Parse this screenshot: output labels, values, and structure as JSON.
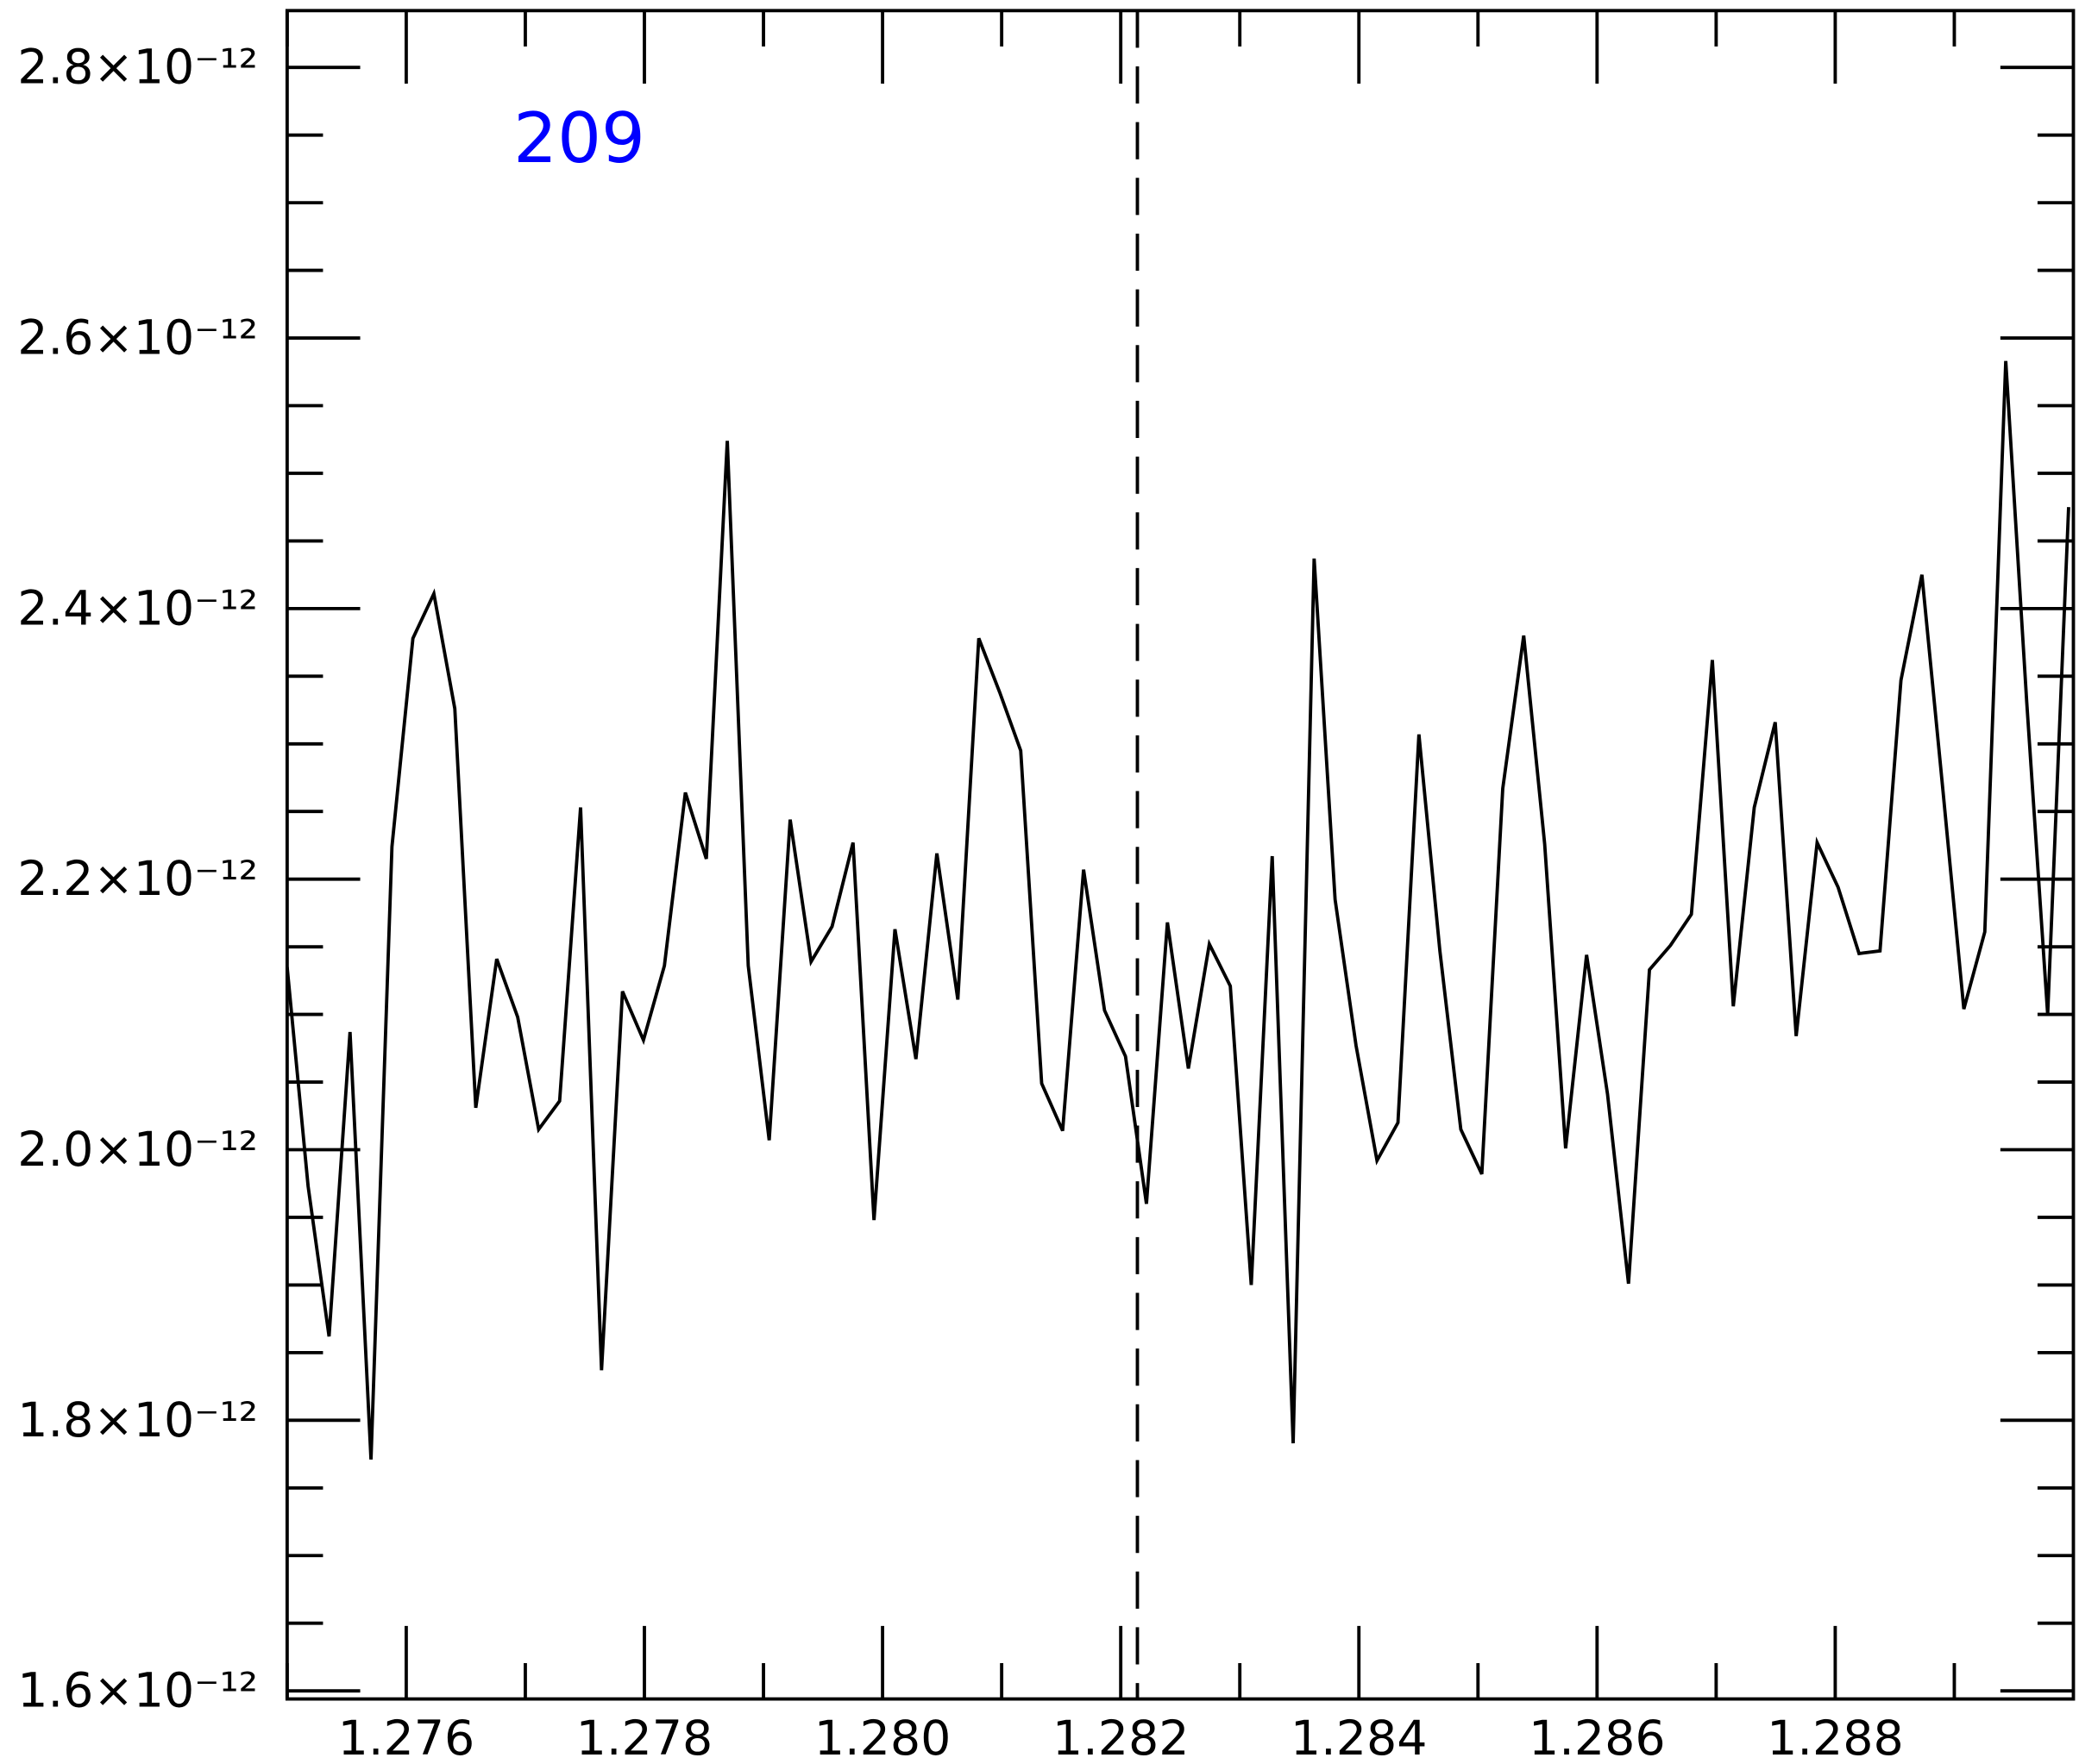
{
  "chart_data": {
    "type": "line",
    "color": "#000000",
    "annotation": {
      "text": "209",
      "x": 1.2769,
      "y": 2.73e-12,
      "color": "#0000ff"
    },
    "vline": {
      "x": 1.28214,
      "style": "dashed"
    },
    "xlim": [
      1.275,
      1.29
    ],
    "ylim": [
      1.594e-12,
      2.842e-12
    ],
    "xticks": [
      1.276,
      1.278,
      {
        "value": 1.28,
        "label": "1.280"
      },
      1.282,
      1.284,
      1.286,
      1.288
    ],
    "yticks": [
      {
        "value": 1.6e-12,
        "label": "1.6×10⁻¹²"
      },
      {
        "value": 1.8e-12,
        "label": "1.8×10⁻¹²"
      },
      {
        "value": 2e-12,
        "label": "2.0×10⁻¹²"
      },
      {
        "value": 2.2e-12,
        "label": "2.2×10⁻¹²"
      },
      {
        "value": 2.4e-12,
        "label": "2.4×10⁻¹²"
      },
      {
        "value": 2.6e-12,
        "label": "2.6×10⁻¹²"
      },
      {
        "value": 2.8e-12,
        "label": "2.8×10⁻¹²"
      }
    ],
    "x": [
      1.275,
      1.275176,
      1.275352,
      1.275528,
      1.275704,
      1.27588,
      1.276056,
      1.276232,
      1.276408,
      1.276584,
      1.27676,
      1.276936,
      1.277112,
      1.277288,
      1.277464,
      1.27764,
      1.277816,
      1.277992,
      1.278168,
      1.278344,
      1.27852,
      1.278696,
      1.278872,
      1.279048,
      1.279224,
      1.2794,
      1.279576,
      1.279752,
      1.279928,
      1.280104,
      1.28028,
      1.280456,
      1.280632,
      1.280808,
      1.280984,
      1.28116,
      1.281336,
      1.281512,
      1.281688,
      1.281864,
      1.28204,
      1.282216,
      1.282392,
      1.282568,
      1.282744,
      1.28292,
      1.283096,
      1.283272,
      1.283448,
      1.283624,
      1.2838,
      1.283976,
      1.284152,
      1.284328,
      1.284504,
      1.28468,
      1.284856,
      1.285032,
      1.285208,
      1.285384,
      1.28556,
      1.285736,
      1.285912,
      1.286088,
      1.286264,
      1.28644,
      1.286616,
      1.286792,
      1.286968,
      1.287144,
      1.28732,
      1.287496,
      1.287672,
      1.287848,
      1.288024,
      1.2882,
      1.288376,
      1.288552,
      1.288728,
      1.288904,
      1.28908,
      1.289256,
      1.289432,
      1.289608,
      1.289784,
      1.28996
    ],
    "values": [
      2.135e-12,
      1.973e-12,
      1.862e-12,
      2.087e-12,
      1.771e-12,
      2.224e-12,
      2.378e-12,
      2.411e-12,
      2.326e-12,
      2.031e-12,
      2.141e-12,
      2.098e-12,
      2.015e-12,
      2.036e-12,
      2.253e-12,
      1.837e-12,
      2.117e-12,
      2.081e-12,
      2.136e-12,
      2.264e-12,
      2.215e-12,
      2.524e-12,
      2.136e-12,
      2.007e-12,
      2.244e-12,
      2.139e-12,
      2.165e-12,
      2.227e-12,
      1.948e-12,
      2.163e-12,
      2.067e-12,
      2.219e-12,
      2.111e-12,
      2.378e-12,
      2.338e-12,
      2.295e-12,
      2.049e-12,
      2.014e-12,
      2.207e-12,
      2.103e-12,
      2.069e-12,
      1.96e-12,
      2.168e-12,
      2.06e-12,
      2.152e-12,
      2.121e-12,
      1.9e-12,
      2.217e-12,
      1.783e-12,
      2.437e-12,
      2.185e-12,
      2.077e-12,
      1.992e-12,
      2.02e-12,
      2.307e-12,
      2.147e-12,
      2.015e-12,
      1.982e-12,
      2.267e-12,
      2.38e-12,
      2.226e-12,
      2.001e-12,
      2.144e-12,
      2.041e-12,
      1.901e-12,
      2.133e-12,
      2.151e-12,
      2.174e-12,
      2.362e-12,
      2.106e-12,
      2.253e-12,
      2.316e-12,
      2.084e-12,
      2.227e-12,
      2.194e-12,
      2.145e-12,
      2.147e-12,
      2.347e-12,
      2.425e-12,
      2.266e-12,
      2.104e-12,
      2.161e-12,
      2.583e-12,
      2.331e-12,
      2.1e-12,
      2.475e-12
    ]
  }
}
